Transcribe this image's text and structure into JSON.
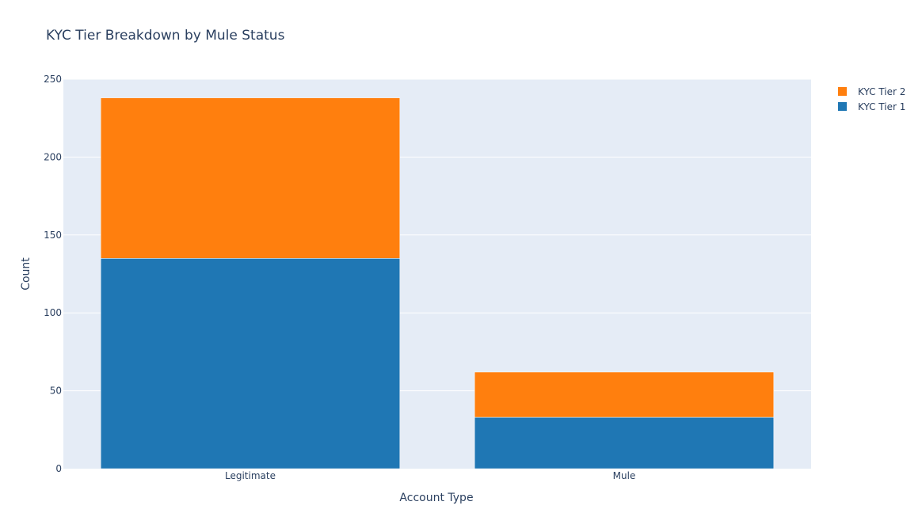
{
  "chart_data": {
    "type": "bar",
    "barmode": "stack",
    "title": "KYC Tier Breakdown by Mule Status",
    "xlabel": "Account Type",
    "ylabel": "Count",
    "categories": [
      "Legitimate",
      "Mule"
    ],
    "series": [
      {
        "name": "KYC Tier 1",
        "values": [
          135,
          33
        ],
        "color": "#1f77b4"
      },
      {
        "name": "KYC Tier 2",
        "values": [
          103,
          29
        ],
        "color": "#ff7f0e"
      }
    ],
    "ylim": [
      0,
      250
    ],
    "yticks": [
      0,
      50,
      100,
      150,
      200,
      250
    ],
    "grid": true,
    "legend_position": "top-right",
    "plot_background": "#e5ecf6"
  }
}
